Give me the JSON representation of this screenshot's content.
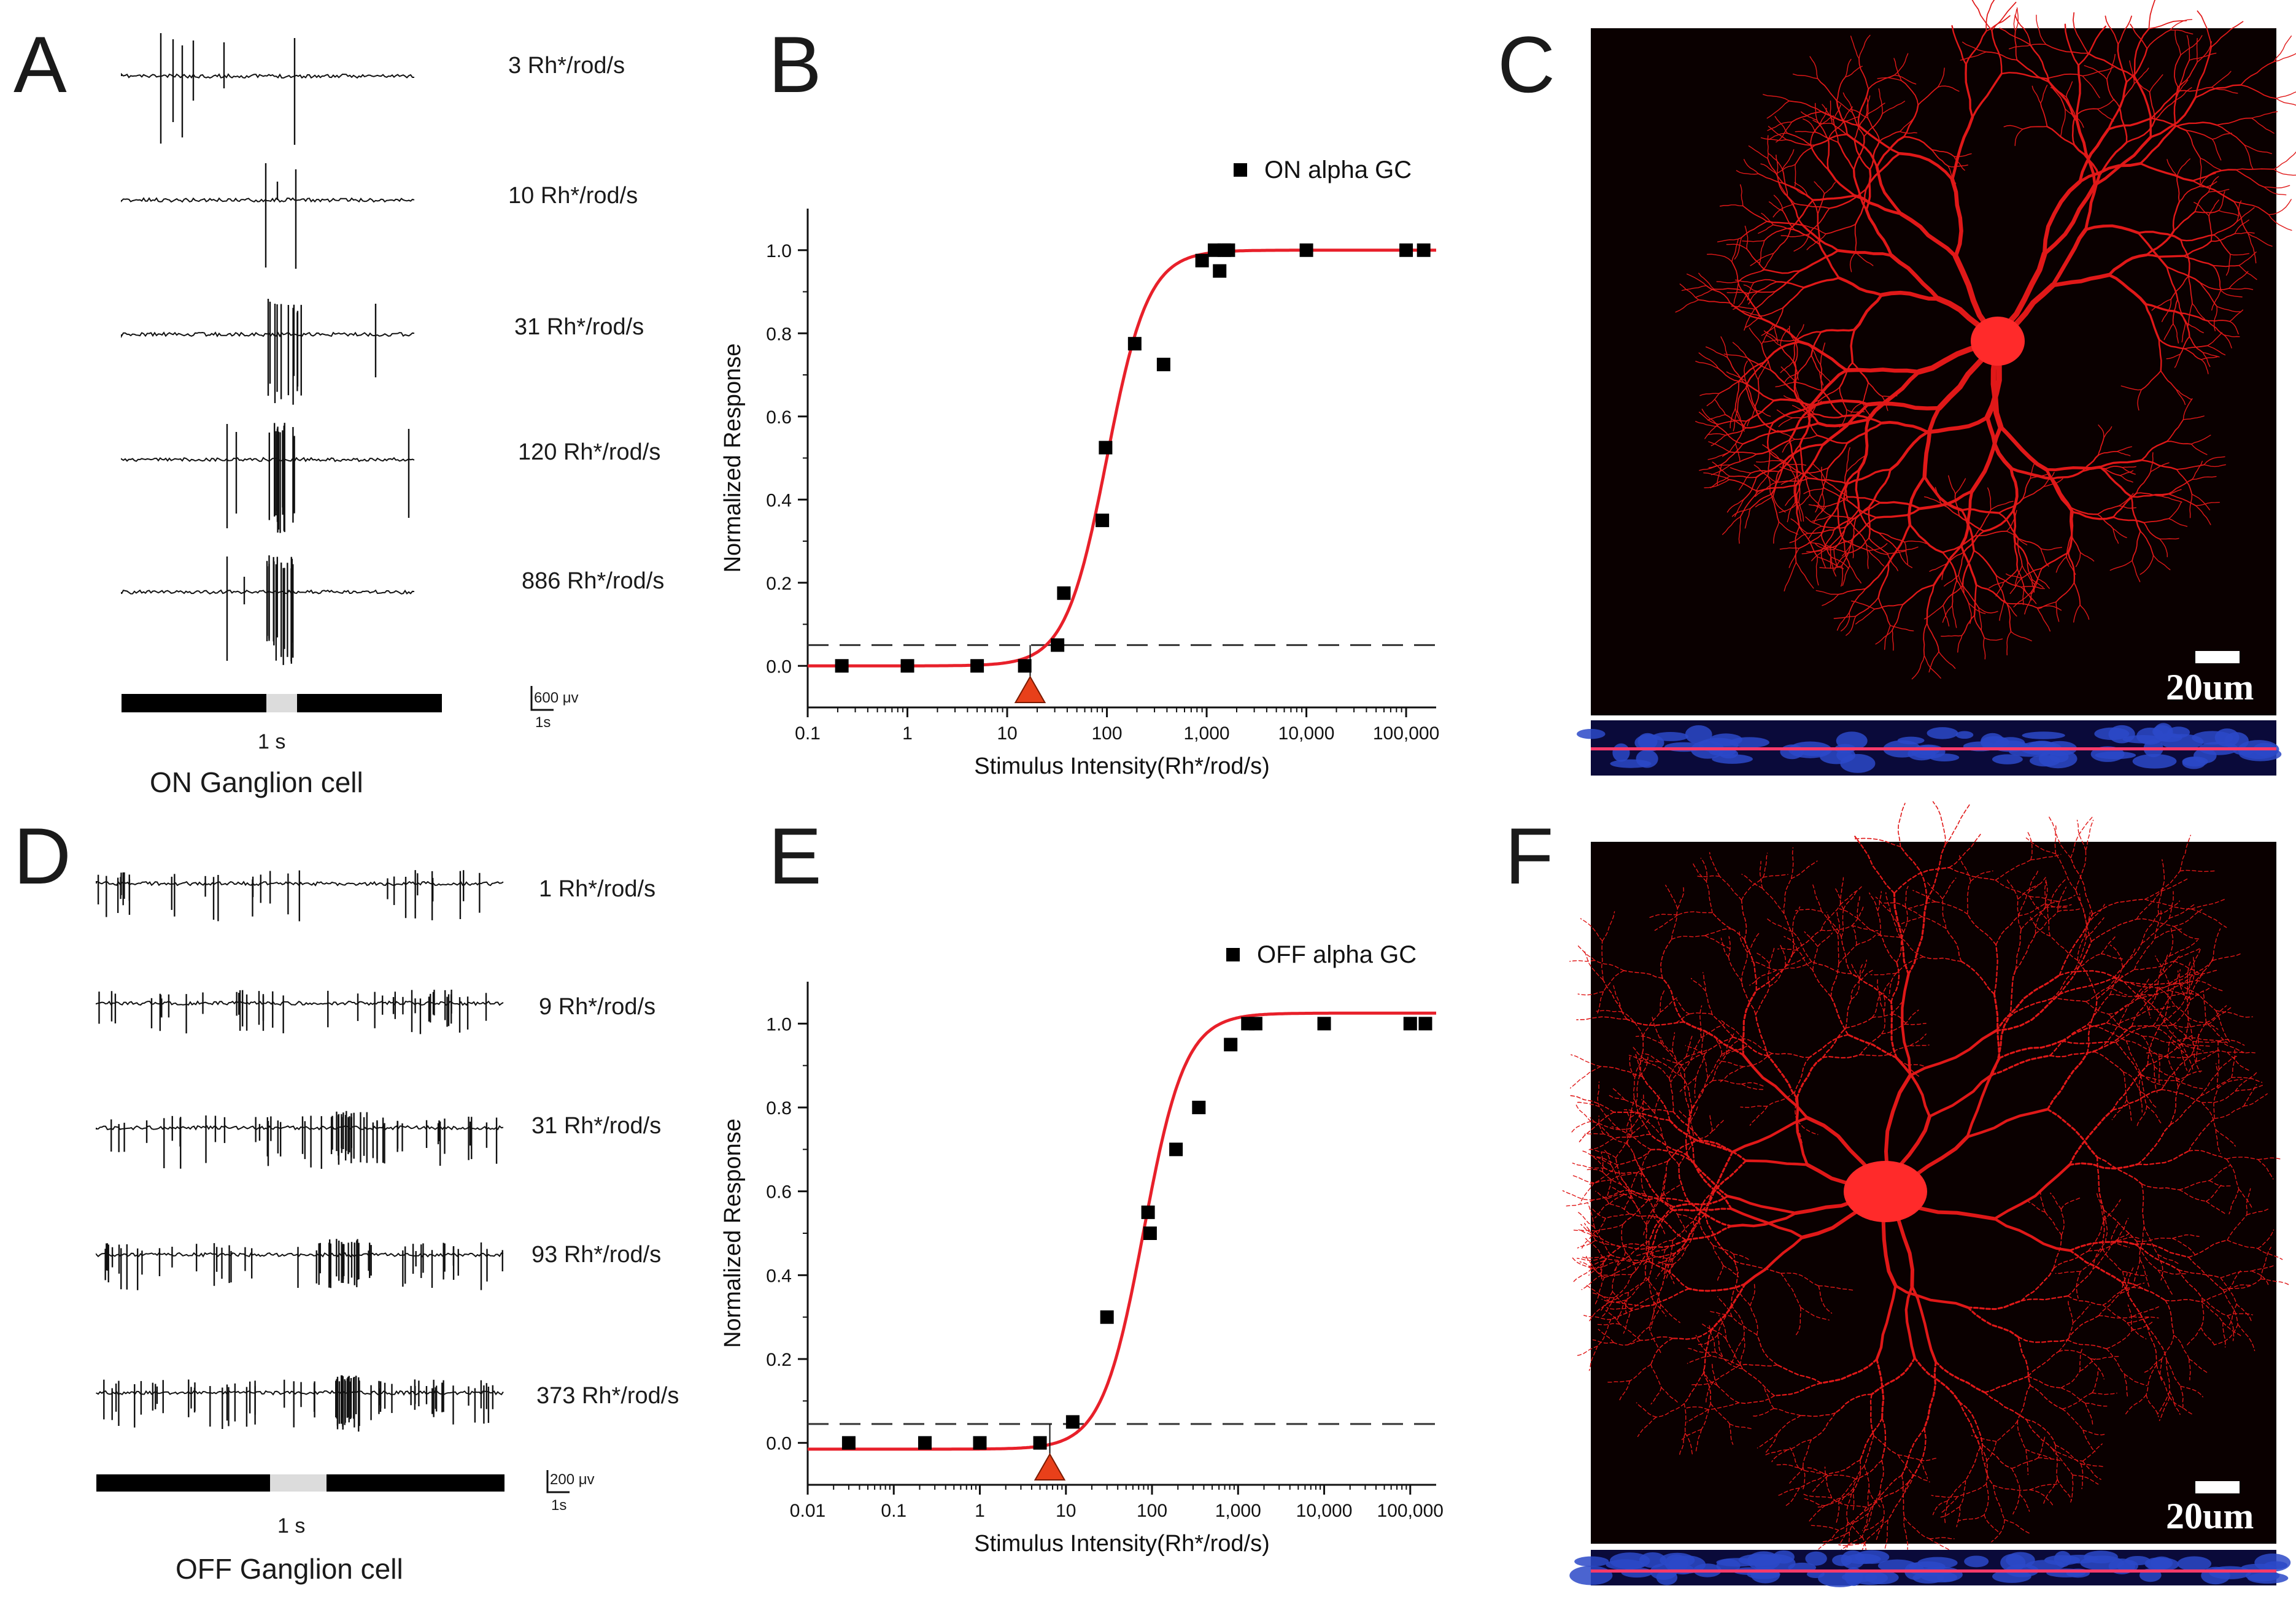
{
  "panels": {
    "A": {
      "letter": "A",
      "traces": [
        {
          "label": "3 Rh*/rod/s"
        },
        {
          "label": "10 Rh*/rod/s"
        },
        {
          "label": "31 Rh*/rod/s"
        },
        {
          "label": "120 Rh*/rod/s"
        },
        {
          "label": "886 Rh*/rod/s"
        }
      ],
      "stimulus_duration": "1 s",
      "scale_voltage": "600 μv",
      "scale_time": "1s",
      "caption": "ON Ganglion cell"
    },
    "B": {
      "letter": "B"
    },
    "C": {
      "letter": "C",
      "scale_label": "20um"
    },
    "D": {
      "letter": "D",
      "traces": [
        {
          "label": "1 Rh*/rod/s"
        },
        {
          "label": "9 Rh*/rod/s"
        },
        {
          "label": "31 Rh*/rod/s"
        },
        {
          "label": "93 Rh*/rod/s"
        },
        {
          "label": "373 Rh*/rod/s"
        }
      ],
      "stimulus_duration": "1 s",
      "scale_voltage": "200 μv",
      "scale_time": "1s",
      "caption": "OFF Ganglion cell"
    },
    "E": {
      "letter": "E"
    },
    "F": {
      "letter": "F",
      "scale_label": "20um"
    }
  },
  "colors": {
    "fit_curve": "#e8202a",
    "threshold_marker": "#e8401a",
    "data_points": "#000000",
    "dendrites": "#e01818",
    "background_micro": "#0a0000"
  },
  "chart_data": [
    {
      "panel": "B",
      "type": "scatter",
      "xscale": "log",
      "xlim": [
        0.1,
        200000
      ],
      "ylim": [
        -0.1,
        1.1
      ],
      "xlabel": "Stimulus Intensity(Rh*/rod/s)",
      "ylabel": "Normalized Response",
      "xticks": [
        "0.1",
        "1",
        "10",
        "100",
        "1,000",
        "10,000",
        "100,000"
      ],
      "yticks": [
        "0.0",
        "0.2",
        "0.4",
        "0.6",
        "0.8",
        "1.0"
      ],
      "legend": "top-right",
      "series": [
        {
          "name": "ON alpha GC",
          "x": [
            0.22,
            1,
            5,
            15,
            32,
            37,
            90,
            97,
            190,
            370,
            900,
            1200,
            1350,
            1500,
            1650,
            10000,
            100000,
            150000
          ],
          "y": [
            0.0,
            0.0,
            0.0,
            0.0,
            0.05,
            0.175,
            0.35,
            0.525,
            0.775,
            0.725,
            0.975,
            1.0,
            0.95,
            1.0,
            1.0,
            1.0,
            1.0,
            1.0
          ]
        }
      ],
      "fit": {
        "bottom": 0.0,
        "top": 1.0,
        "x0": 100,
        "hill": 2.1
      },
      "threshold_line_y": 0.05,
      "threshold_x": 17
    },
    {
      "panel": "E",
      "type": "scatter",
      "xscale": "log",
      "xlim": [
        0.01,
        200000
      ],
      "ylim": [
        -0.1,
        1.1
      ],
      "xlabel": "Stimulus Intensity(Rh*/rod/s)",
      "ylabel": "Normalized Response",
      "xticks": [
        "0.01",
        "0.1",
        "1",
        "10",
        "100",
        "1,000",
        "10,000",
        "100,000"
      ],
      "yticks": [
        "0.0",
        "0.2",
        "0.4",
        "0.6",
        "0.8",
        "1.0"
      ],
      "legend": "top-right",
      "series": [
        {
          "name": "OFF alpha GC",
          "x": [
            0.03,
            0.23,
            1,
            5,
            12,
            30,
            90,
            95,
            190,
            350,
            820,
            1300,
            1600,
            10000,
            100000,
            150000
          ],
          "y": [
            0.0,
            0.0,
            0.0,
            0.0,
            0.05,
            0.3,
            0.55,
            0.5,
            0.7,
            0.8,
            0.95,
            1.0,
            1.0,
            1.0,
            1.0,
            1.0
          ]
        }
      ],
      "fit": {
        "bottom": -0.015,
        "top": 1.025,
        "x0": 80,
        "hill": 1.8
      },
      "threshold_line_y": 0.045,
      "threshold_x": 6.5
    }
  ]
}
